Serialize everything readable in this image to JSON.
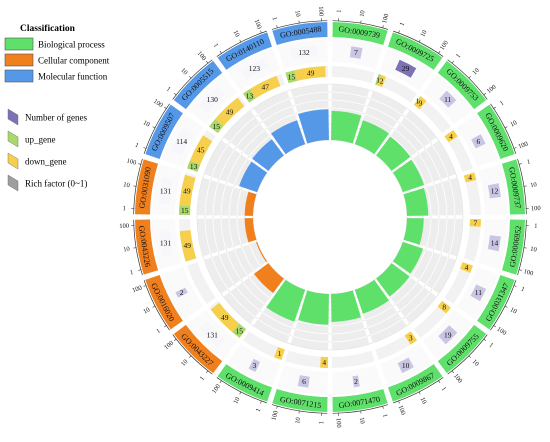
{
  "chart_data": {
    "type": "circular",
    "legend": {
      "title": "Classification",
      "categories": [
        {
          "label": "Biological process",
          "color": "#5ee06a"
        },
        {
          "label": "Cellular component",
          "color": "#f07f1e"
        },
        {
          "label": "Molecular function",
          "color": "#5598e8"
        }
      ],
      "keys": [
        {
          "label": "Number of genes",
          "color": "#7e72b6"
        },
        {
          "label": "up_gene",
          "color": "#a9d86b"
        },
        {
          "label": "down_gene",
          "color": "#f6d04d"
        },
        {
          "label": "Rich factor (0~1)",
          "color": "#9e9e9e"
        }
      ]
    },
    "scale_ticks": [
      "1",
      "10",
      "100"
    ],
    "terms": [
      {
        "id": "GO:0009739",
        "category": "Biological process",
        "genes": 7,
        "up": 0,
        "down": 0,
        "rich": 0.52
      },
      {
        "id": "GO:0009725",
        "category": "Biological process",
        "genes": 29,
        "up": 1,
        "down": 2,
        "rich": 0.45
      },
      {
        "id": "GO:0009753",
        "category": "Biological process",
        "genes": 11,
        "up": 1,
        "down": 9,
        "rich": 0.42
      },
      {
        "id": "GO:0009620",
        "category": "Biological process",
        "genes": 6,
        "up": 0,
        "down": 4,
        "rich": 0.4
      },
      {
        "id": "GO:0009737",
        "category": "Biological process",
        "genes": 12,
        "up": 0,
        "down": 4,
        "rich": 0.38
      },
      {
        "id": "GO:0006952",
        "category": "Biological process",
        "genes": 14,
        "up": 0,
        "down": 7,
        "rich": 0.3
      },
      {
        "id": "GO:0031347",
        "category": "Biological process",
        "genes": 11,
        "up": 0,
        "down": 4,
        "rich": 0.38
      },
      {
        "id": "GO:0009755",
        "category": "Biological process",
        "genes": 19,
        "up": 0,
        "down": 8,
        "rich": 0.4
      },
      {
        "id": "GO:0009867",
        "category": "Biological process",
        "genes": 10,
        "up": 0,
        "down": 3,
        "rich": 0.45
      },
      {
        "id": "GO:0071470",
        "category": "Biological process",
        "genes": 2,
        "up": 0,
        "down": 0,
        "rich": 0.5
      },
      {
        "id": "GO:0071215",
        "category": "Biological process",
        "genes": 6,
        "up": 0,
        "down": 4,
        "rich": 0.55
      },
      {
        "id": "GO:0009414",
        "category": "Biological process",
        "genes": 3,
        "up": 0,
        "down": 1,
        "rich": 0.6
      },
      {
        "id": "GO:0043227",
        "category": "Cellular component",
        "genes": 131,
        "up": 15,
        "down": 49,
        "rich": 0.32
      },
      {
        "id": "GO:0016020",
        "category": "Cellular component",
        "genes": 2,
        "up": 0,
        "down": 0,
        "rich": 0.02
      },
      {
        "id": "GO:0043226",
        "category": "Cellular component",
        "genes": 131,
        "up": 0,
        "down": 49,
        "rich": 0.15
      },
      {
        "id": "GO:0031090",
        "category": "Cellular component",
        "genes": 131,
        "up": 15,
        "down": 49,
        "rich": 0.15
      },
      {
        "id": "GO:0009507",
        "category": "Molecular function",
        "genes": 114,
        "up": 13,
        "down": 45,
        "rich": 0.34
      },
      {
        "id": "GO:0005515",
        "category": "Molecular function",
        "genes": 130,
        "up": 15,
        "down": 49,
        "rich": 0.36
      },
      {
        "id": "GO:0140110",
        "category": "Molecular function",
        "genes": 123,
        "up": 13,
        "down": 47,
        "rich": 0.45
      },
      {
        "id": "GO:0005488",
        "category": "Molecular function",
        "genes": 132,
        "up": 15,
        "down": 49,
        "rich": 0.55
      }
    ]
  }
}
